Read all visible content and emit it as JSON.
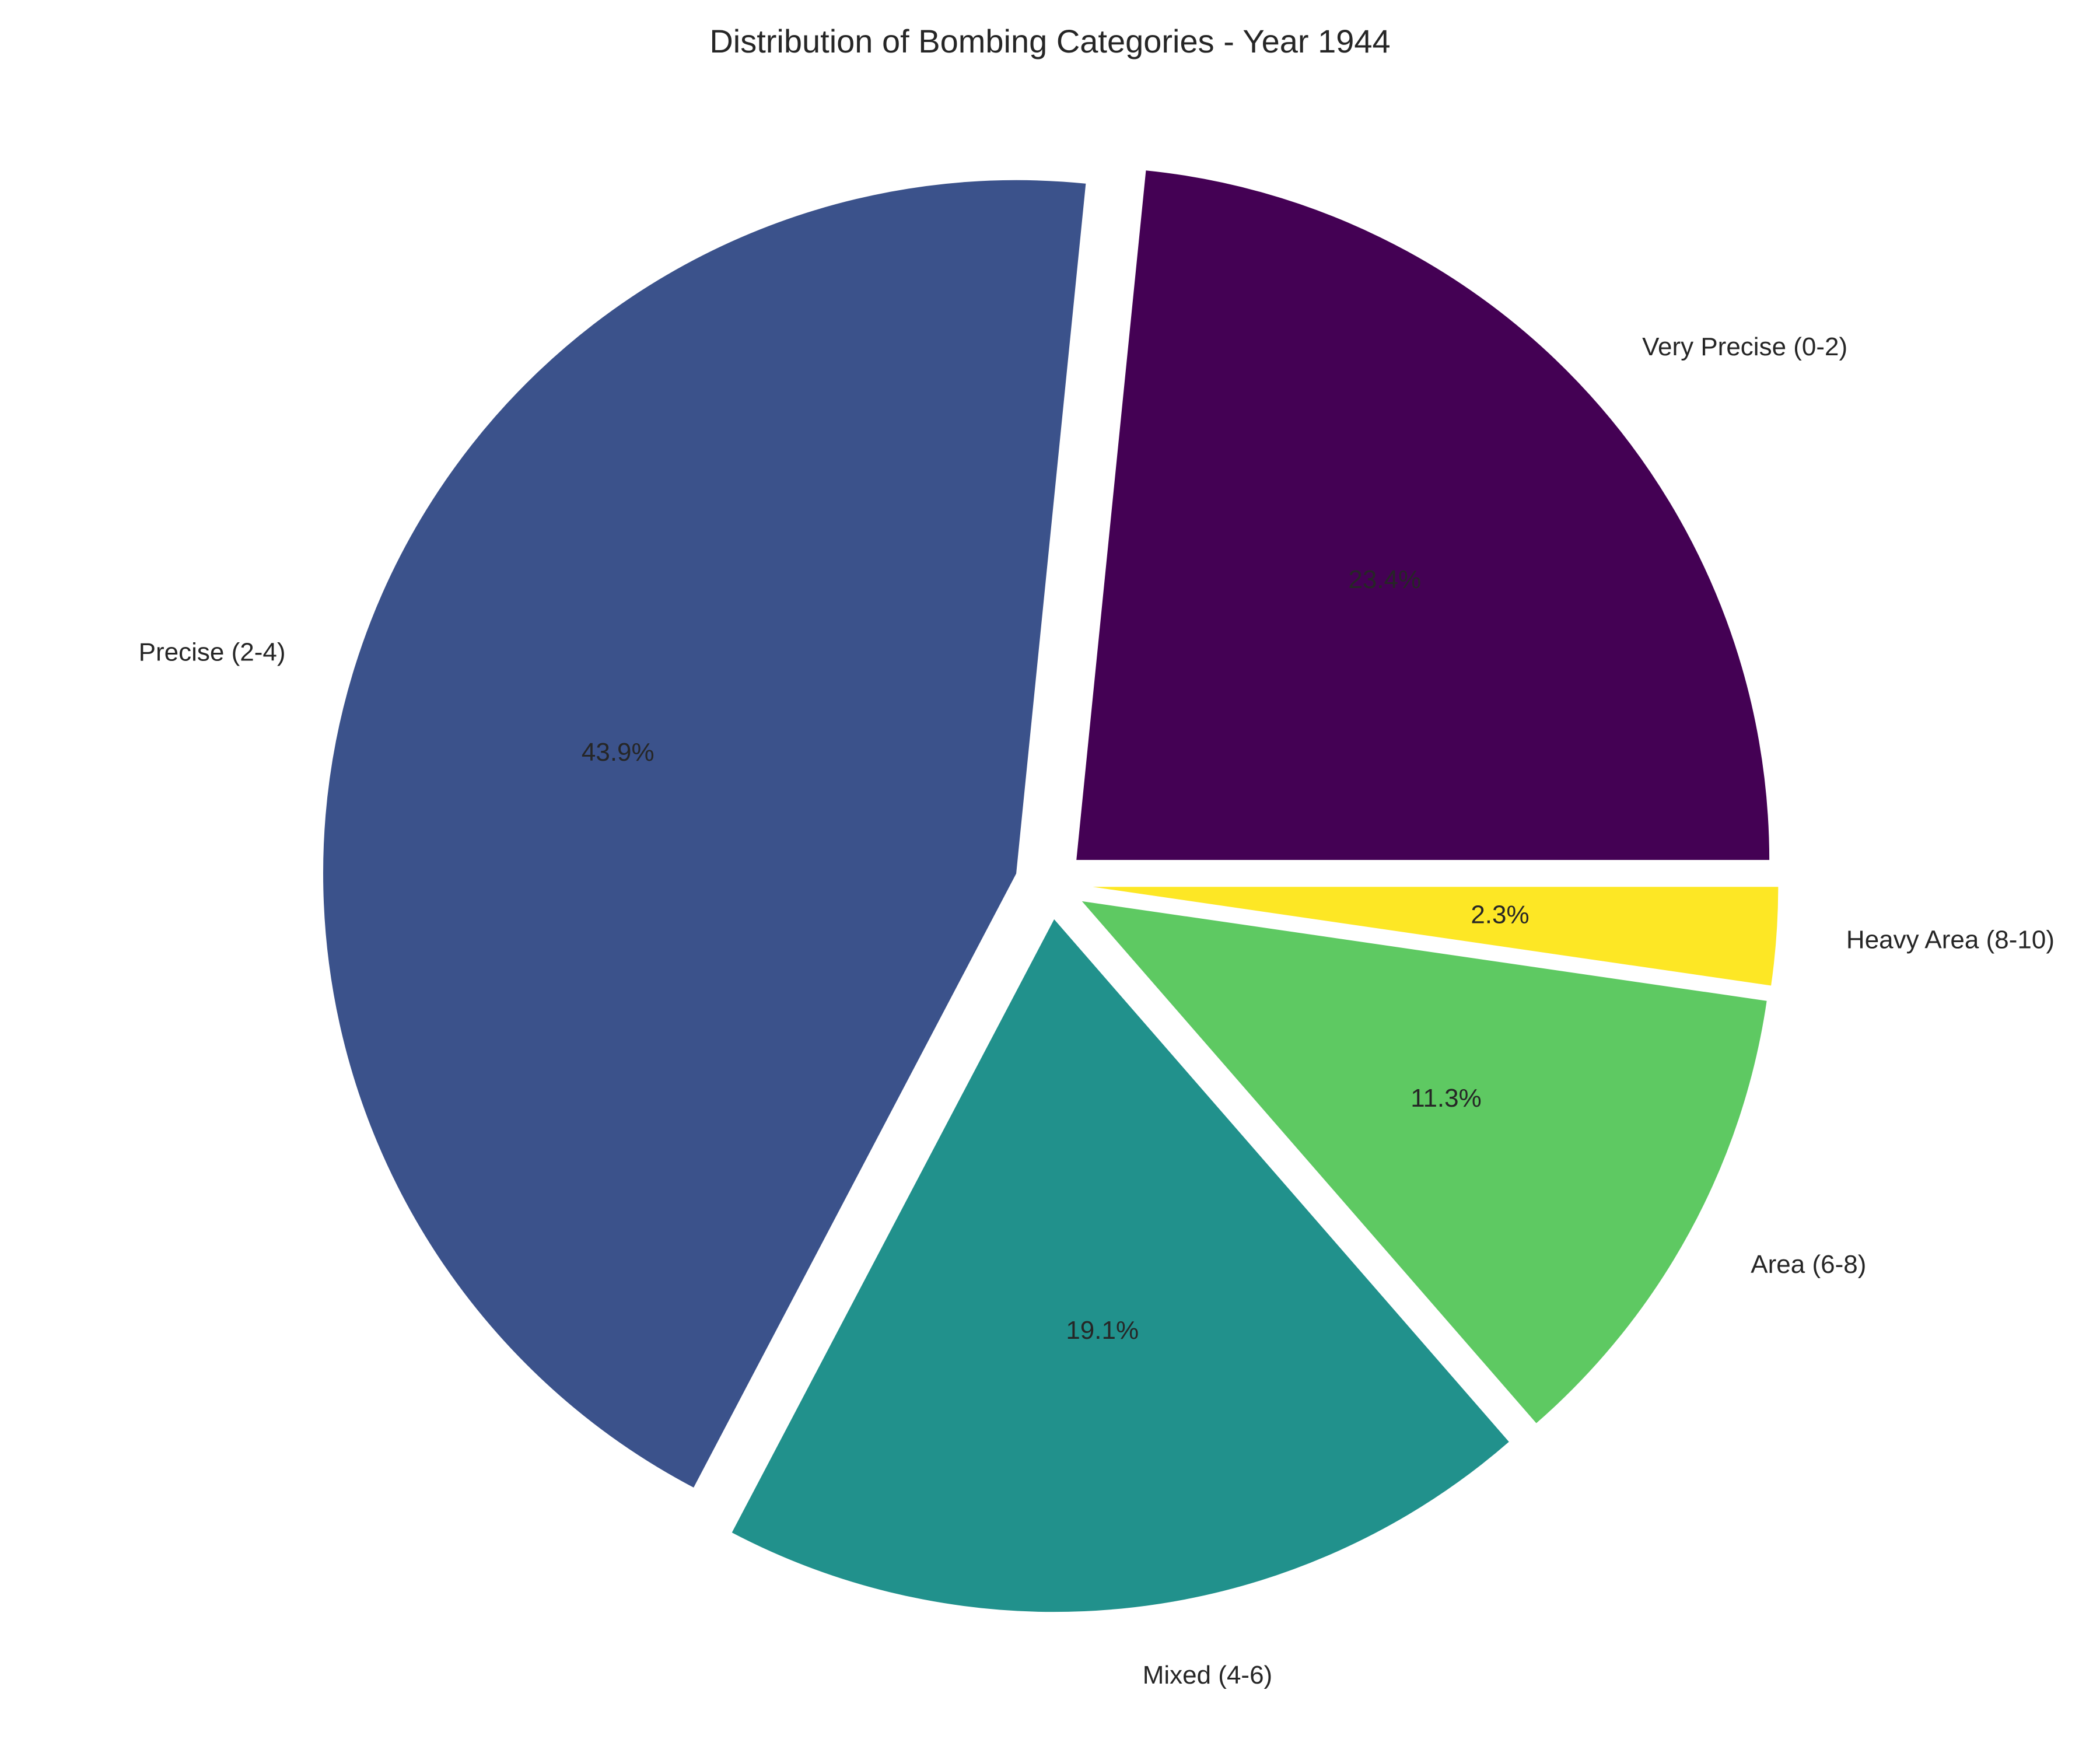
{
  "chart_data": {
    "type": "pie",
    "title": "Distribution of Bombing Categories - Year 1944",
    "categories": [
      "Very Precise (0-2)",
      "Precise (2-4)",
      "Mixed (4-6)",
      "Area (6-8)",
      "Heavy Area (8-10)"
    ],
    "values": [
      23.4,
      43.9,
      19.1,
      11.3,
      2.3
    ],
    "percent_labels": [
      "23.4%",
      "43.9%",
      "19.1%",
      "11.3%",
      "2.3%"
    ],
    "colors": [
      "#440154",
      "#3b528b",
      "#21918c",
      "#5ec962",
      "#fde725"
    ],
    "start_angle_deg": 0,
    "direction": "counterclockwise",
    "exploded": true
  }
}
